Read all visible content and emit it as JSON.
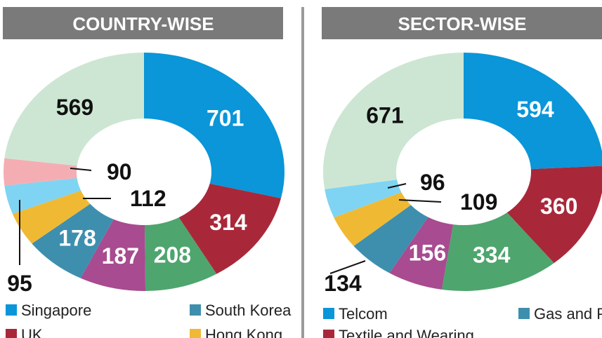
{
  "chart_data": [
    {
      "type": "pie",
      "title": "COUNTRY-WISE",
      "categories": [
        "Singapore",
        "UK",
        null,
        null,
        "South Korea",
        "Hong Kong",
        null,
        null,
        null
      ],
      "values": [
        701,
        314,
        208,
        187,
        178,
        112,
        95,
        90,
        569
      ],
      "colors": [
        "#0a96d8",
        "#a8283a",
        "#4ea56e",
        "#a84b90",
        "#3e8fae",
        "#f0b934",
        "#7fd4f3",
        "#f4aeb3",
        "#cde6d3"
      ]
    },
    {
      "type": "pie",
      "title": "SECTOR-WISE",
      "categories": [
        "Telcom",
        "Textile and Wearing",
        null,
        null,
        "Gas and Petroleum",
        null,
        null,
        null
      ],
      "values": [
        594,
        360,
        334,
        156,
        134,
        109,
        96,
        671
      ],
      "colors": [
        "#0a96d8",
        "#a8283a",
        "#4ea56e",
        "#a84b90",
        "#3e8fae",
        "#f0b934",
        "#7fd4f3",
        "#cde6d3"
      ]
    }
  ]
}
